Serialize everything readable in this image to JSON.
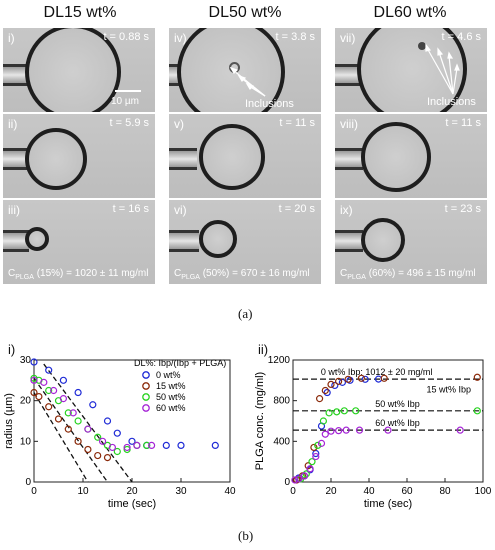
{
  "columns": [
    {
      "title": "DL15 wt%",
      "panels": [
        {
          "label": "i)",
          "time": "t = 0.88 s"
        },
        {
          "label": "ii)",
          "time": "t = 5.9 s"
        },
        {
          "label": "iii)",
          "time": "t = 16 s"
        }
      ],
      "conc": {
        "prefix": "C",
        "sub": "PLGA",
        "text": " (15%) = 1020 ± 11 mg/ml"
      }
    },
    {
      "title": "DL50 wt%",
      "panels": [
        {
          "label": "iv)",
          "time": "t = 3.8 s"
        },
        {
          "label": "v)",
          "time": "t = 11 s"
        },
        {
          "label": "vi)",
          "time": "t = 20 s"
        }
      ],
      "conc": {
        "prefix": "C",
        "sub": "PLGA",
        "text": " (50%) = 670 ± 16 mg/ml"
      }
    },
    {
      "title": "DL60 wt%",
      "panels": [
        {
          "label": "vii)",
          "time": "t = 4.6 s"
        },
        {
          "label": "viii)",
          "time": "t = 11 s"
        },
        {
          "label": "ix)",
          "time": "t = 23 s"
        }
      ],
      "conc": {
        "prefix": "C",
        "sub": "PLGA",
        "text": " (60%) = 496 ± 15 mg/ml"
      }
    }
  ],
  "scalebar": "10 µm",
  "inclusions_label": "Inclusions",
  "caption_a": "(a)",
  "caption_b": "(b)",
  "chart_data": [
    {
      "type": "scatter",
      "panel_label": "i)",
      "xlabel": "time (sec)",
      "ylabel": "radius (µm)",
      "xlim": [
        0,
        40
      ],
      "ylim": [
        0,
        30
      ],
      "xticks": [
        0,
        10,
        20,
        30,
        40
      ],
      "yticks": [
        0,
        10,
        20,
        30
      ],
      "legend_title": "DL%: Ibp/(Ibp + PLGA)",
      "legend_position": "top-right",
      "series": [
        {
          "name": "0 wt%",
          "color": "#1f2bd6",
          "x": [
            0,
            3,
            6,
            9,
            12,
            15,
            17,
            20,
            23,
            27,
            30,
            37
          ],
          "y": [
            29.5,
            27.5,
            25,
            22,
            19,
            15,
            12,
            10,
            9,
            9,
            9,
            9
          ]
        },
        {
          "name": "15 wt%",
          "color": "#8b2a0a",
          "x": [
            0,
            1,
            3,
            5,
            7,
            9,
            11,
            13,
            15
          ],
          "y": [
            22,
            21,
            18.5,
            15.5,
            13,
            10,
            8,
            6.5,
            6
          ]
        },
        {
          "name": "50 wt%",
          "color": "#27d21f",
          "x": [
            0,
            1,
            3,
            5,
            7,
            9,
            11,
            13,
            15,
            17,
            19,
            21,
            23
          ],
          "y": [
            25.5,
            25,
            22.5,
            20,
            17,
            15,
            13,
            11,
            9,
            7.5,
            8,
            9,
            9
          ]
        },
        {
          "name": "60 wt%",
          "color": "#a524d6",
          "x": [
            0,
            2,
            4,
            6,
            8,
            11,
            14,
            16,
            19,
            21,
            24
          ],
          "y": [
            25,
            24.5,
            22.5,
            20.5,
            17,
            13,
            10,
            8.5,
            8.5,
            9,
            9
          ]
        }
      ],
      "fit_lines": [
        {
          "x": [
            0,
            11
          ],
          "y": [
            22,
            0
          ]
        },
        {
          "x": [
            0,
            15
          ],
          "y": [
            25.5,
            0
          ]
        },
        {
          "x": [
            2,
            20
          ],
          "y": [
            29,
            0
          ]
        }
      ]
    },
    {
      "type": "scatter",
      "panel_label": "ii)",
      "xlabel": "time (sec)",
      "ylabel": "PLGA conc. (mg/ml)",
      "xlim": [
        0,
        100
      ],
      "ylim": [
        0,
        1200
      ],
      "xticks": [
        0,
        20,
        40,
        60,
        80,
        100
      ],
      "yticks": [
        0,
        400,
        800,
        1200
      ],
      "reference_lines": [
        {
          "value": 1012,
          "label": "0 wt% Ibp: 1012  ± 20 mg/ml"
        },
        {
          "value": 1020,
          "label": "15 wt% Ibp"
        },
        {
          "value": 700,
          "label": "50 wt% Ibp"
        },
        {
          "value": 510,
          "label": "60 wt% Ibp"
        }
      ],
      "series": [
        {
          "name": "0 wt%",
          "color": "#1f2bd6",
          "x": [
            3,
            6,
            9,
            12,
            15,
            18,
            22,
            26,
            30,
            38,
            45
          ],
          "y": [
            40,
            60,
            120,
            280,
            550,
            880,
            950,
            980,
            1000,
            1010,
            1012
          ]
        },
        {
          "name": "15 wt%",
          "color": "#8b2a0a",
          "x": [
            2,
            5,
            8,
            11,
            14,
            17,
            20,
            24,
            29,
            36,
            48,
            97
          ],
          "y": [
            20,
            60,
            160,
            340,
            820,
            900,
            960,
            990,
            1010,
            1020,
            1020,
            1030
          ]
        },
        {
          "name": "50 wt%",
          "color": "#27d21f",
          "x": [
            4,
            7,
            10,
            13,
            16,
            19,
            23,
            27,
            33,
            97
          ],
          "y": [
            30,
            80,
            200,
            360,
            600,
            680,
            690,
            700,
            700,
            700
          ]
        },
        {
          "name": "60 wt%",
          "color": "#a524d6",
          "x": [
            1,
            3,
            6,
            9,
            12,
            15,
            17,
            20,
            24,
            28,
            35,
            50,
            88
          ],
          "y": [
            20,
            30,
            60,
            130,
            250,
            380,
            470,
            500,
            505,
            510,
            510,
            510,
            510
          ]
        }
      ]
    }
  ]
}
